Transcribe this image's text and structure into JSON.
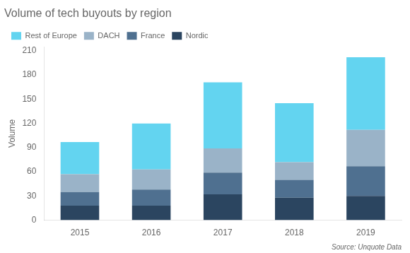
{
  "chart_data": {
    "type": "bar",
    "title": "Volume of tech buyouts by region",
    "ylabel": "Volume",
    "source": "Source: Unquote Data",
    "categories": [
      "2015",
      "2016",
      "2017",
      "2018",
      "2019"
    ],
    "series": [
      {
        "name": "Nordic",
        "color": "#2b4560",
        "values": [
          18,
          18,
          32,
          28,
          30
        ]
      },
      {
        "name": "France",
        "color": "#4f7090",
        "values": [
          17,
          20,
          27,
          22,
          37
        ]
      },
      {
        "name": "DACH",
        "color": "#9ab3c8",
        "values": [
          22,
          25,
          30,
          22,
          45
        ]
      },
      {
        "name": "Rest of Europe",
        "color": "#63d4f0",
        "values": [
          40,
          57,
          82,
          73,
          90
        ]
      }
    ],
    "stacked": true,
    "ylim": [
      0,
      215
    ],
    "yticks": [
      0,
      30,
      60,
      90,
      120,
      150,
      180,
      210
    ],
    "grid": false,
    "legend": "upper left"
  }
}
